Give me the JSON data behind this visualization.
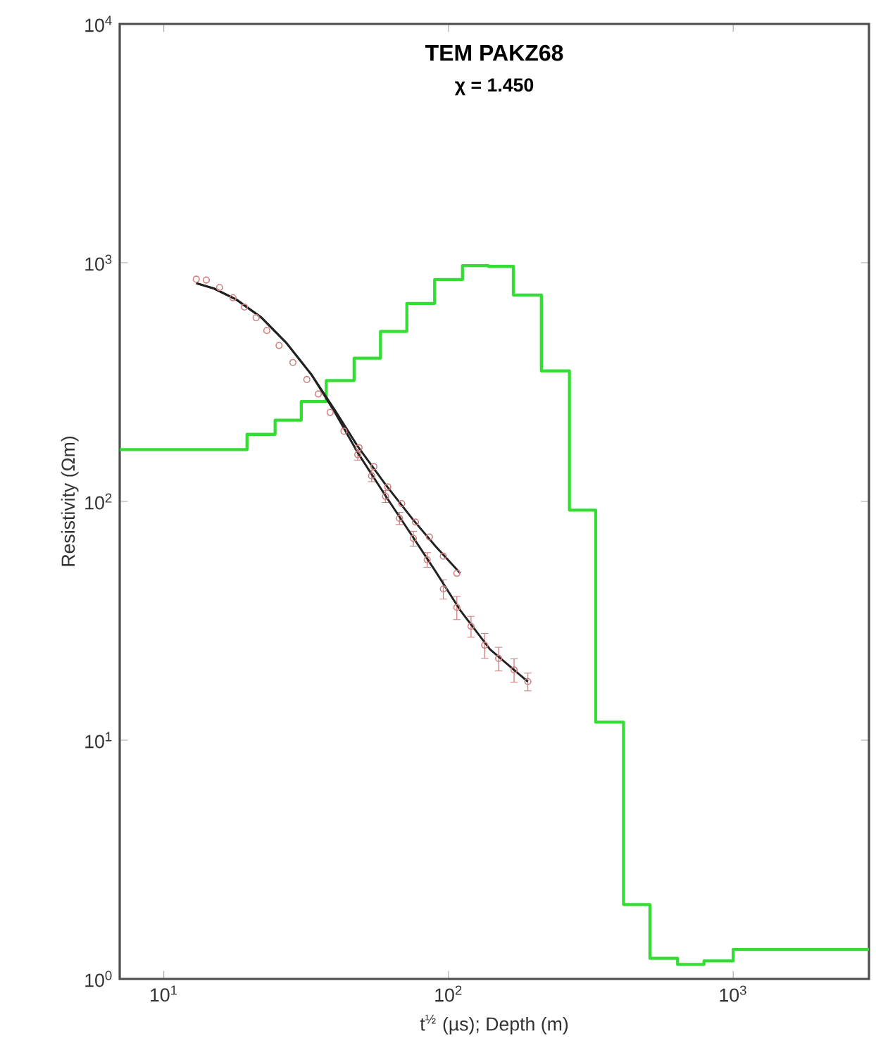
{
  "chart_data": {
    "type": "line",
    "title": "**TEM PAKZ68**",
    "subtitle": "**χ = 1.450**",
    "xlabel": "t$^{½}$ (µs); Depth (m)",
    "ylabel": "Resistivity (Ωm)",
    "log": "xy",
    "grid": false,
    "xlim": [
      7,
      3000
    ],
    "ylim": [
      1,
      10000
    ],
    "xticks": [
      {
        "value": 10,
        "label": "10$^{1}$"
      },
      {
        "value": 100,
        "label": "10$^{2}$"
      },
      {
        "value": 1000,
        "label": "10$^{3}$"
      }
    ],
    "yticks": [
      {
        "value": 1,
        "label": "10$^{0}$"
      },
      {
        "value": 10,
        "label": "10$^{1}$"
      },
      {
        "value": 100,
        "label": "10$^{2}$"
      },
      {
        "value": 1000,
        "label": "10$^{3}$"
      },
      {
        "value": 10000,
        "label": "10$^{4}$"
      }
    ],
    "series": [
      {
        "type": "step",
        "color": "#33dd33",
        "marker": "none",
        "x": [
          7,
          19.6,
          24.6,
          30.4,
          37.2,
          46.6,
          57.7,
          71.4,
          89.4,
          112,
          138,
          169,
          212,
          266,
          329,
          412,
          510,
          638,
          790,
          1000,
          3000
        ],
        "values": [
          165,
          191,
          219,
          262,
          321,
          398,
          515,
          675,
          850,
          973,
          965,
          732,
          352,
          92,
          11.9,
          2.05,
          1.22,
          1.15,
          1.19,
          1.33,
          1.33
        ]
      },
      {
        "type": "scatter",
        "color": "#d08080",
        "marker": "circle",
        "x": [
          13.0,
          14.1,
          15.7,
          17.5,
          19.2,
          21.1,
          23.0,
          25.4,
          28.4,
          31.8,
          34.9,
          38.4,
          42.9,
          48.5,
          54.7,
          61.2,
          68.5,
          76.6,
          85.7,
          95.9,
          107
        ],
        "values": [
          853,
          846,
          787,
          713,
          652,
          588,
          520,
          450,
          382,
          324,
          282,
          236,
          197,
          168,
          140,
          115,
          98,
          82,
          71,
          59,
          50
        ]
      },
      {
        "type": "scatter",
        "color": "#d08080",
        "marker": "circle",
        "x": [
          48.0,
          53.7,
          60.1,
          67.3,
          75.3,
          84.2,
          95.9,
          107,
          120,
          134,
          150,
          170,
          190
        ],
        "values": [
          157,
          128,
          105,
          85,
          70,
          57,
          43,
          36,
          30,
          25,
          22,
          19.7,
          17.6
        ],
        "errors": [
          8,
          7,
          6,
          5,
          5,
          4,
          4,
          4,
          3,
          3,
          2.5,
          2.2,
          1.5
        ]
      },
      {
        "color": "#222222",
        "marker": "none",
        "line_style": "solid",
        "x": [
          13,
          15,
          18,
          22,
          27,
          33,
          40,
          48,
          60,
          75,
          90,
          110
        ],
        "values": [
          820,
          780,
          700,
          590,
          460,
          340,
          240,
          170,
          118,
          84,
          65,
          50
        ]
      },
      {
        "color": "#222222",
        "marker": "none",
        "line_style": "solid",
        "x": [
          13,
          15,
          18,
          22,
          27,
          33,
          40,
          48,
          60,
          75,
          90,
          110,
          140,
          190
        ],
        "values": [
          820,
          780,
          700,
          590,
          460,
          340,
          235,
          160,
          106,
          71,
          51,
          35,
          24,
          17.6
        ]
      }
    ]
  }
}
